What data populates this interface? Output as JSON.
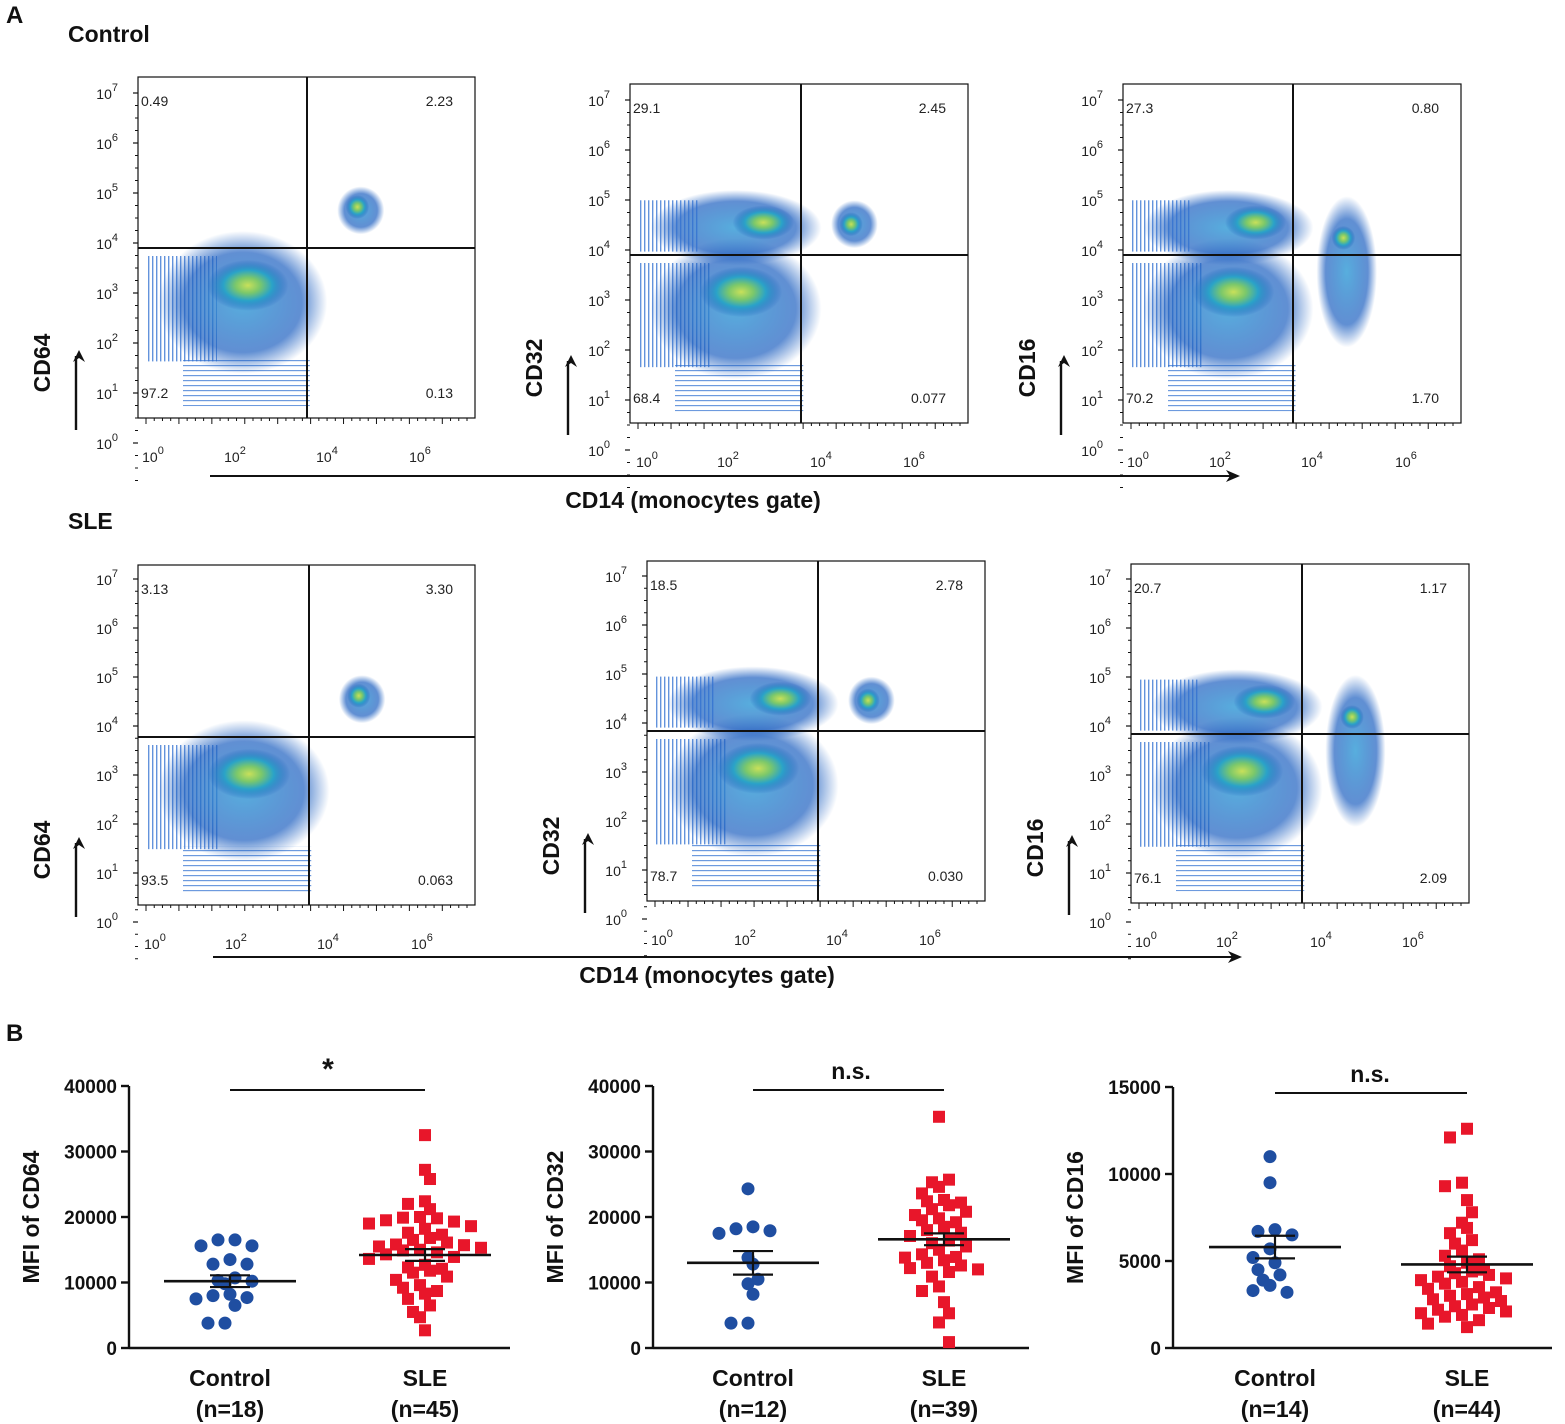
{
  "panels": {
    "A": "A",
    "B": "B"
  },
  "colors": {
    "control": "#1f4ea1",
    "sle": "#e8162a",
    "axis": "#111111"
  },
  "panel_a": {
    "x_title": "CD14 (monocytes gate)",
    "rows": [
      {
        "label": "Control",
        "plots": [
          {
            "marker": "CD64",
            "q": {
              "ul": "0.49",
              "ur": "2.23",
              "ll": "97.2",
              "lr": "0.13"
            }
          },
          {
            "marker": "CD32",
            "q": {
              "ul": "29.1",
              "ur": "2.45",
              "ll": "68.4",
              "lr": "0.077"
            }
          },
          {
            "marker": "CD16",
            "q": {
              "ul": "27.3",
              "ur": "0.80",
              "ll": "70.2",
              "lr": "1.70"
            }
          }
        ]
      },
      {
        "label": "SLE",
        "plots": [
          {
            "marker": "CD64",
            "q": {
              "ul": "3.13",
              "ur": "3.30",
              "ll": "93.5",
              "lr": "0.063"
            }
          },
          {
            "marker": "CD32",
            "q": {
              "ul": "18.5",
              "ur": "2.78",
              "ll": "78.7",
              "lr": "0.030"
            }
          },
          {
            "marker": "CD16",
            "q": {
              "ul": "20.7",
              "ur": "1.17",
              "ll": "76.1",
              "lr": "2.09"
            }
          }
        ]
      }
    ]
  },
  "chart_data": [
    {
      "type": "scatter",
      "title": "",
      "ylabel": "MFI of CD64",
      "ylim": [
        0,
        40000
      ],
      "yticks": [
        "0",
        "10000",
        "20000",
        "30000",
        "40000"
      ],
      "significance": "*",
      "categories": [
        "Control\n(n=18)",
        "SLE\n(n=45)"
      ],
      "series": [
        {
          "name": "Control",
          "n_label": "(n=18)",
          "mean": 10200,
          "sem": 900,
          "values": [
            16500,
            16500,
            15600,
            15600,
            13500,
            12800,
            12800,
            10700,
            10300,
            10200,
            9800,
            8200,
            8000,
            7700,
            7500,
            6500,
            3800,
            3800
          ]
        },
        {
          "name": "SLE",
          "n_label": "(n=45)",
          "mean": 14200,
          "sem": 900,
          "values": [
            32500,
            27200,
            25800,
            22400,
            22000,
            21200,
            20000,
            19900,
            19800,
            19500,
            19300,
            19000,
            18600,
            18200,
            17600,
            17300,
            16800,
            16500,
            16100,
            15800,
            15700,
            15500,
            15300,
            15000,
            14900,
            14600,
            14300,
            13900,
            13600,
            12700,
            12300,
            12100,
            11800,
            11500,
            10900,
            10400,
            9600,
            9200,
            8700,
            8300,
            7500,
            6500,
            5500,
            4700,
            2700
          ]
        }
      ]
    },
    {
      "type": "scatter",
      "title": "",
      "ylabel": "MFI of CD32",
      "ylim": [
        0,
        40000
      ],
      "yticks": [
        "0",
        "10000",
        "20000",
        "30000",
        "40000"
      ],
      "significance": "n.s.",
      "categories": [
        "Control\n(n=12)",
        "SLE\n(n=39)"
      ],
      "series": [
        {
          "name": "Control",
          "n_label": "(n=12)",
          "mean": 13000,
          "sem": 1800,
          "values": [
            24300,
            18500,
            18200,
            17900,
            17500,
            13800,
            12800,
            10500,
            9800,
            8200,
            3800,
            3800
          ]
        },
        {
          "name": "SLE",
          "n_label": "(n=39)",
          "mean": 16600,
          "sem": 900,
          "values": [
            35300,
            25700,
            25300,
            24600,
            23600,
            22600,
            22400,
            22200,
            21800,
            21200,
            20800,
            20300,
            19800,
            19500,
            19200,
            18500,
            18000,
            17600,
            17100,
            16400,
            16000,
            15500,
            15000,
            14300,
            13900,
            13800,
            13400,
            13000,
            12600,
            12200,
            12000,
            11600,
            10900,
            9400,
            8700,
            7000,
            5300,
            3900,
            900
          ]
        }
      ]
    },
    {
      "type": "scatter",
      "title": "",
      "ylabel": "MFI of CD16",
      "ylim": [
        0,
        15000
      ],
      "yticks": [
        "0",
        "5000",
        "10000",
        "15000"
      ],
      "significance": "n.s.",
      "categories": [
        "Control\n(n=14)",
        "SLE\n(n=44)"
      ],
      "series": [
        {
          "name": "Control",
          "n_label": "(n=14)",
          "mean": 5800,
          "sem": 650,
          "values": [
            11000,
            9500,
            6800,
            6700,
            6500,
            5700,
            5200,
            4900,
            4500,
            4200,
            3900,
            3600,
            3300,
            3200
          ]
        },
        {
          "name": "SLE",
          "n_label": "(n=44)",
          "mean": 4800,
          "sem": 450,
          "values": [
            12600,
            12100,
            9500,
            9300,
            8500,
            7800,
            7200,
            6900,
            6600,
            6200,
            6000,
            5600,
            5300,
            5100,
            4900,
            4700,
            4500,
            4400,
            4300,
            4200,
            4100,
            4000,
            3900,
            3800,
            3700,
            3500,
            3400,
            3200,
            3100,
            3000,
            2900,
            2800,
            2700,
            2500,
            2400,
            2300,
            2200,
            2100,
            2000,
            1900,
            1800,
            1600,
            1400,
            1200
          ]
        }
      ]
    }
  ]
}
